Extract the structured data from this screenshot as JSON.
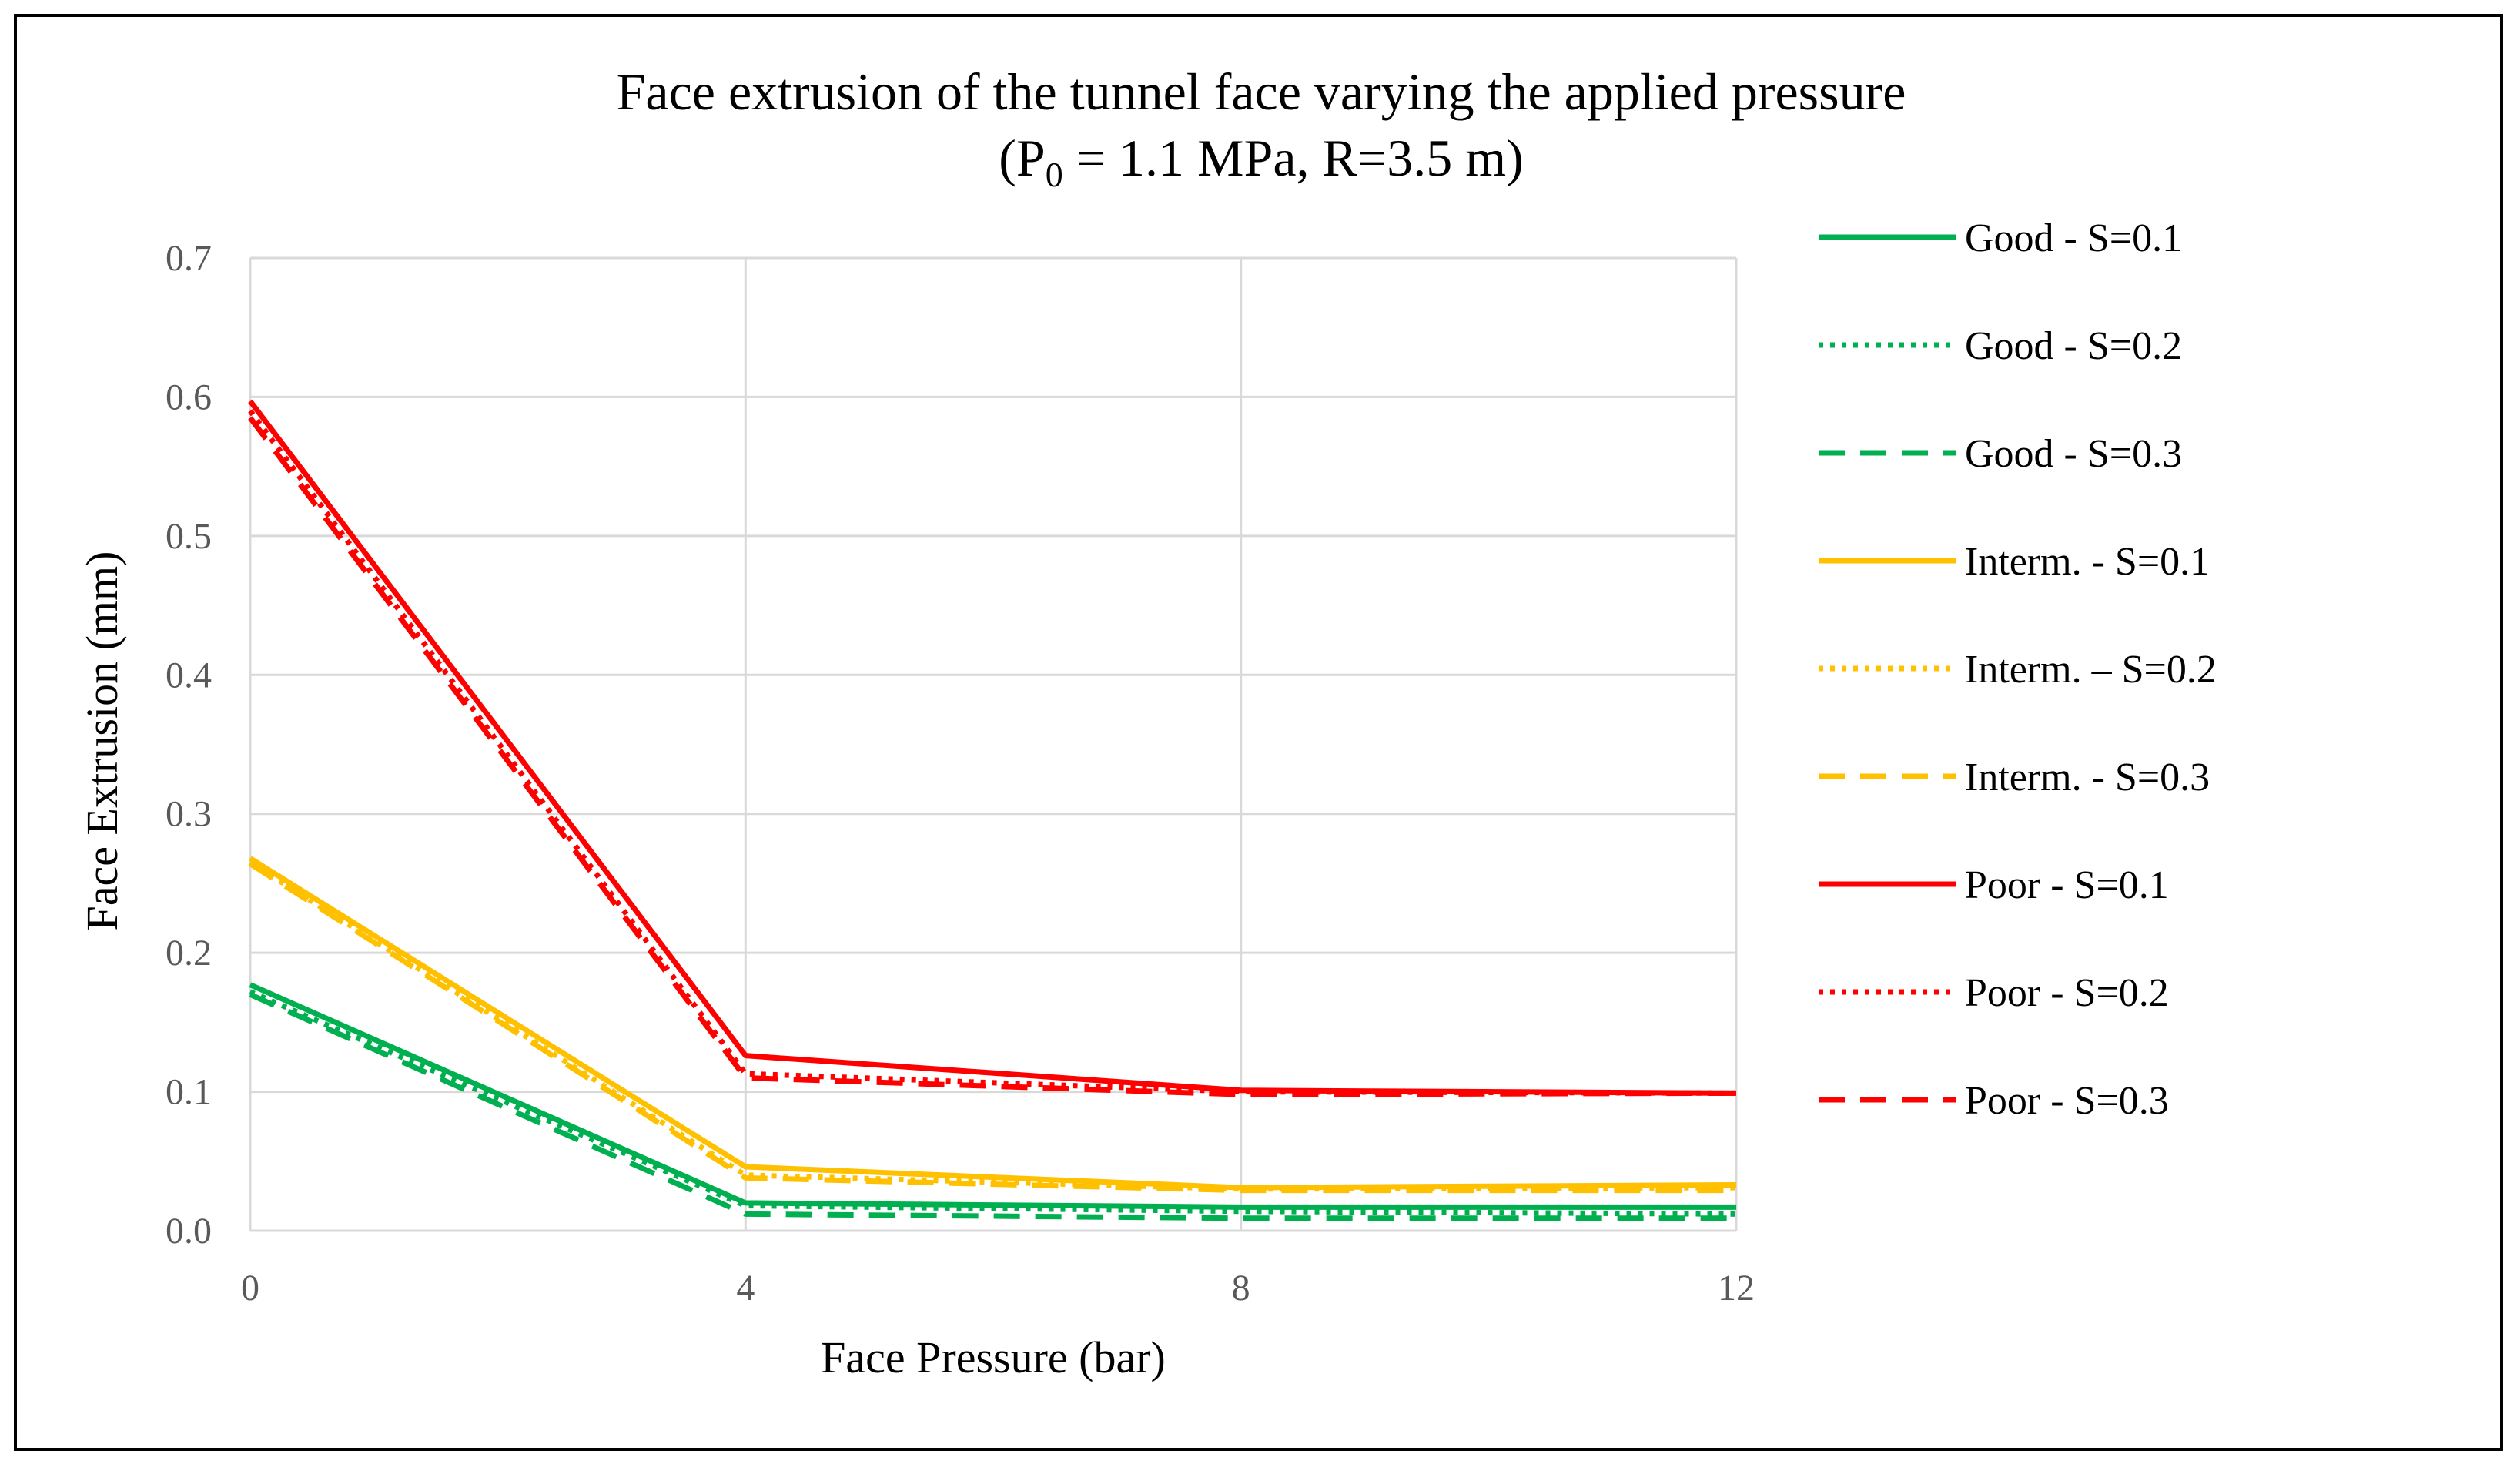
{
  "chart_data": {
    "type": "line",
    "title": "Face extrusion of the tunnel face varying the applied pressure",
    "subtitle": {
      "prefix": "(P",
      "subscript": "0",
      "suffix": " = 1.1 MPa, R=3.5 m)"
    },
    "xlabel": "Face Pressure (bar)",
    "ylabel": "Face Extrusion (mm)",
    "x": [
      0,
      4,
      8,
      12
    ],
    "xticks": [
      "0",
      "4",
      "8",
      "12"
    ],
    "yticks": [
      "0.0",
      "0.1",
      "0.2",
      "0.3",
      "0.4",
      "0.5",
      "0.6",
      "0.7"
    ],
    "xlim": [
      0,
      12
    ],
    "ylim": [
      0,
      0.7
    ],
    "grid": "vertical-and-horizontal",
    "legend_position": "right",
    "series": [
      {
        "name": "Good - S=0.1",
        "color": "#00b050",
        "dash": "solid",
        "values": [
          0.177,
          0.02,
          0.017,
          0.017
        ]
      },
      {
        "name": "Good - S=0.2",
        "color": "#00b050",
        "dash": "dotted",
        "values": [
          0.172,
          0.018,
          0.014,
          0.012
        ]
      },
      {
        "name": "Good - S=0.3",
        "color": "#00b050",
        "dash": "dashed",
        "values": [
          0.17,
          0.012,
          0.009,
          0.009
        ]
      },
      {
        "name": "Interm. - S=0.1",
        "color": "#ffc000",
        "dash": "solid",
        "values": [
          0.268,
          0.046,
          0.031,
          0.033
        ]
      },
      {
        "name": "Interm. – S=0.2",
        "color": "#ffc000",
        "dash": "dotted",
        "values": [
          0.265,
          0.04,
          0.03,
          0.031
        ]
      },
      {
        "name": "Interm. - S=0.3",
        "color": "#ffc000",
        "dash": "dashed",
        "values": [
          0.264,
          0.038,
          0.029,
          0.029
        ]
      },
      {
        "name": "Poor - S=0.1",
        "color": "#ff0000",
        "dash": "solid",
        "values": [
          0.597,
          0.126,
          0.101,
          0.099
        ]
      },
      {
        "name": "Poor - S=0.2",
        "color": "#ff0000",
        "dash": "dotted",
        "values": [
          0.59,
          0.113,
          0.1,
          0.099
        ]
      },
      {
        "name": "Poor - S=0.3",
        "color": "#ff0000",
        "dash": "dashed",
        "values": [
          0.585,
          0.11,
          0.098,
          0.099
        ]
      }
    ]
  }
}
